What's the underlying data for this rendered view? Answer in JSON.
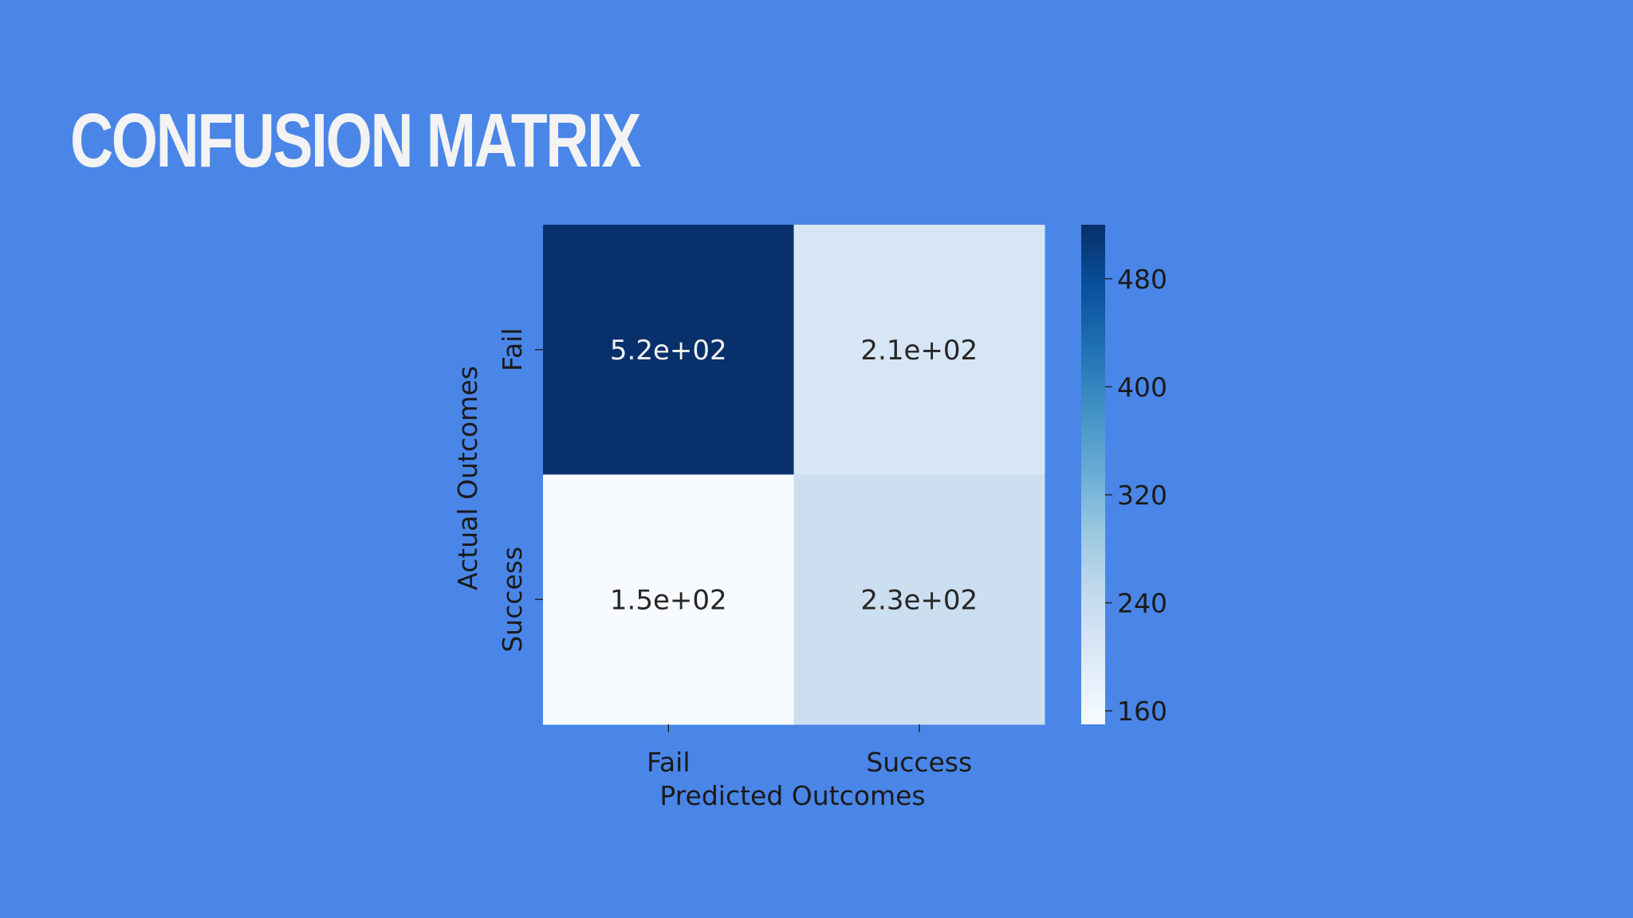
{
  "slide": {
    "title": "CONFUSION MATRIX",
    "background": "#4a86e8"
  },
  "chart_data": {
    "type": "heatmap",
    "title": "",
    "xlabel": "Predicted Outcomes",
    "ylabel": "Actual Outcomes",
    "x_categories": [
      "Fail",
      "Success"
    ],
    "y_categories": [
      "Fail",
      "Success"
    ],
    "values": [
      [
        520,
        210
      ],
      [
        150,
        230
      ]
    ],
    "cell_labels": [
      [
        "5.2e+02",
        "2.1e+02"
      ],
      [
        "1.5e+02",
        "2.3e+02"
      ]
    ],
    "colormap": "Blues",
    "colorbar": {
      "range": [
        150,
        520
      ],
      "ticks": [
        160,
        240,
        320,
        400,
        480
      ]
    },
    "grid": false
  }
}
